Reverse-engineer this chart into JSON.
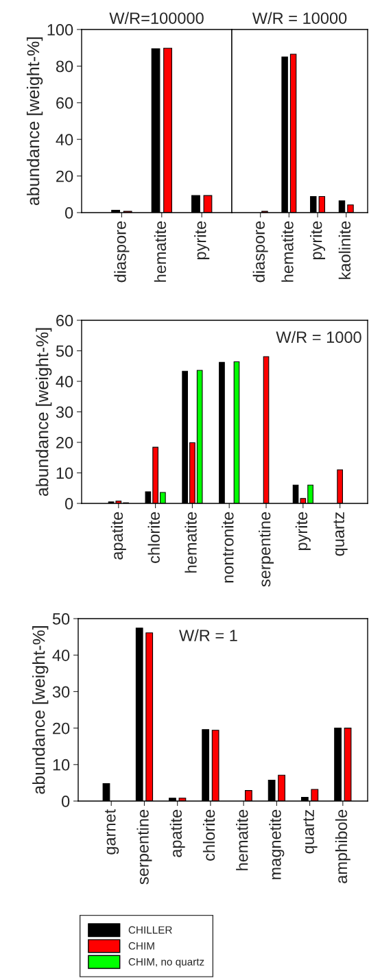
{
  "chart_data": [
    {
      "type": "bar",
      "title": "W/R=100000",
      "ylabel": "abundance [weight-%]",
      "categories": [
        "diaspore",
        "hematite",
        "pyrite"
      ],
      "series": [
        {
          "color": "#000000",
          "values": [
            1.3,
            89.5,
            9.3
          ]
        },
        {
          "color": "#ff0000",
          "values": [
            0.7,
            89.8,
            9.3
          ]
        }
      ],
      "ylim": [
        0,
        100
      ],
      "yticks": [
        0,
        20,
        40,
        60,
        80,
        100
      ]
    },
    {
      "type": "bar",
      "title": "W/R = 10000",
      "categories": [
        "diaspore",
        "hematite",
        "pyrite",
        "kaolinite"
      ],
      "series": [
        {
          "color": "#000000",
          "values": [
            null,
            85.0,
            8.8,
            6.4
          ]
        },
        {
          "color": "#ff0000",
          "values": [
            0.7,
            86.5,
            8.8,
            4.2
          ]
        }
      ],
      "ylim": [
        0,
        100
      ],
      "yticks": [
        0,
        20,
        40,
        60,
        80,
        100
      ],
      "tick_labels": "x"
    },
    {
      "type": "bar",
      "ylabel": "abundance [weight-%]",
      "annotations": [
        "W/R = 1000"
      ],
      "legend": "bottom",
      "categories": [
        "apatite",
        "chlorite",
        "hematite",
        "nontronite",
        "serpentine",
        "pyrite",
        "quartz"
      ],
      "series": [
        {
          "name": "CHILLER",
          "color": "#000000",
          "values": [
            0.5,
            3.8,
            43.3,
            46.2,
            null,
            6.0,
            null
          ]
        },
        {
          "name": "CHIM",
          "color": "#ff0000",
          "values": [
            0.8,
            18.4,
            19.9,
            null,
            48.1,
            1.6,
            11.0
          ]
        },
        {
          "name": "CHIM, no quartz",
          "color": "#00ff00",
          "values": [
            0.2,
            3.6,
            43.6,
            46.4,
            null,
            6.0,
            null
          ]
        }
      ],
      "ylim": [
        0,
        60
      ],
      "yticks": [
        0,
        10,
        20,
        30,
        40,
        50,
        60
      ]
    },
    {
      "type": "bar",
      "ylabel": "abundance [weight-%]",
      "annotations": [
        "W/R = 1"
      ],
      "categories": [
        "garnet",
        "serpentine",
        "apatite",
        "chlorite",
        "hematite",
        "magnetite",
        "quartz",
        "amphibole"
      ],
      "series": [
        {
          "color": "#000000",
          "values": [
            4.8,
            47.4,
            0.8,
            19.6,
            null,
            5.7,
            1.0,
            20.0
          ]
        },
        {
          "color": "#ff0000",
          "values": [
            null,
            46.1,
            0.8,
            19.4,
            2.9,
            7.1,
            3.2,
            20.0
          ]
        }
      ],
      "ylim": [
        0,
        50
      ],
      "yticks": [
        0,
        10,
        20,
        30,
        40,
        50
      ]
    }
  ]
}
